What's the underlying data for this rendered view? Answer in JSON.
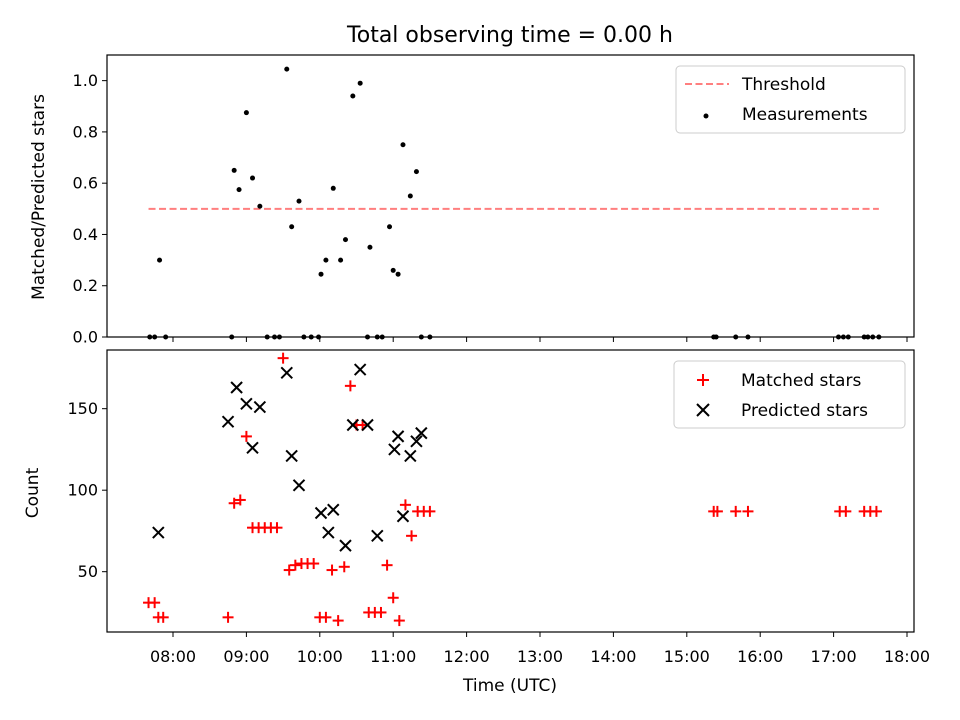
{
  "chart_data": [
    {
      "type": "scatter",
      "title": "Total observing time = 0.00 h",
      "xlabel": "",
      "ylabel": "Matched/Predicted stars",
      "ylim": [
        0,
        1.1
      ],
      "yticks": [
        "0.0",
        "0.2",
        "0.4",
        "0.6",
        "0.8",
        "1.0"
      ],
      "legend_position": "top-right",
      "threshold": {
        "name": "Threshold",
        "y": 0.5,
        "x_start": "07:40",
        "x_end": "17:37",
        "color": "#ff7f7f"
      },
      "series": [
        {
          "name": "Measurements",
          "color": "#000000",
          "marker": "dot",
          "x": [
            "07:41",
            "07:45",
            "07:49",
            "07:54",
            "08:48",
            "08:50",
            "08:54",
            "09:00",
            "09:05",
            "09:11",
            "09:17",
            "09:23",
            "09:27",
            "09:33",
            "09:37",
            "09:43",
            "09:47",
            "09:53",
            "09:59",
            "10:01",
            "10:05",
            "10:11",
            "10:17",
            "10:21",
            "10:27",
            "10:33",
            "10:39",
            "10:41",
            "10:47",
            "10:51",
            "10:57",
            "11:00",
            "11:04",
            "11:08",
            "11:14",
            "11:19",
            "11:23",
            "11:30",
            "15:22",
            "15:24",
            "15:40",
            "15:50",
            "17:04",
            "17:08",
            "17:12",
            "17:25",
            "17:28",
            "17:32",
            "17:37"
          ],
          "y": [
            0,
            0,
            0.3,
            0,
            0,
            0.65,
            0.575,
            0.875,
            0.62,
            0.51,
            0,
            0,
            0,
            1.045,
            0.43,
            0.53,
            0,
            0,
            0,
            0.245,
            0.3,
            0.58,
            0.3,
            0.38,
            0.94,
            0.99,
            0,
            0.35,
            0,
            0,
            0.43,
            0.26,
            0.245,
            0.75,
            0.55,
            0.645,
            0,
            0,
            0,
            0,
            0,
            0,
            0,
            0,
            0,
            0,
            0,
            0,
            0
          ]
        }
      ]
    },
    {
      "type": "scatter",
      "title": "",
      "xlabel": "Time (UTC)",
      "ylabel": "Count",
      "ylim": [
        13,
        186
      ],
      "yticks": [
        "50",
        "100",
        "150"
      ],
      "xticks": [
        "08:00",
        "09:00",
        "10:00",
        "11:00",
        "12:00",
        "13:00",
        "14:00",
        "15:00",
        "16:00",
        "17:00",
        "18:00"
      ],
      "legend_position": "top-right",
      "series": [
        {
          "name": "Matched stars",
          "color": "#ff0000",
          "marker": "plus",
          "x": [
            "07:40",
            "07:45",
            "07:48",
            "07:52",
            "08:45",
            "08:50",
            "08:55",
            "09:00",
            "09:05",
            "09:10",
            "09:15",
            "09:20",
            "09:25",
            "09:30",
            "09:35",
            "09:40",
            "09:45",
            "09:50",
            "09:55",
            "10:00",
            "10:05",
            "10:10",
            "10:15",
            "10:20",
            "10:25",
            "10:30",
            "10:35",
            "10:40",
            "10:45",
            "10:50",
            "10:55",
            "11:00",
            "11:05",
            "11:10",
            "11:15",
            "11:20",
            "11:25",
            "11:30",
            "15:22",
            "15:25",
            "15:40",
            "15:50",
            "17:05",
            "17:10",
            "17:25",
            "17:30",
            "17:35"
          ],
          "y": [
            31,
            31,
            22,
            22,
            22,
            92,
            94,
            133,
            77,
            77,
            77,
            77,
            77,
            181,
            51,
            54,
            55,
            55,
            55,
            22,
            22,
            51,
            20,
            53,
            164,
            140,
            140,
            25,
            25,
            25,
            54,
            34,
            20,
            91,
            72,
            87,
            87,
            87,
            87,
            87,
            87,
            87,
            87,
            87,
            87,
            87,
            87
          ]
        },
        {
          "name": "Predicted stars",
          "color": "#000000",
          "marker": "cross",
          "x": [
            "07:48",
            "08:45",
            "08:52",
            "09:00",
            "09:05",
            "09:11",
            "09:33",
            "09:37",
            "09:43",
            "10:01",
            "10:07",
            "10:11",
            "10:21",
            "10:27",
            "10:33",
            "10:39",
            "10:47",
            "11:01",
            "11:04",
            "11:08",
            "11:14",
            "11:19",
            "11:23"
          ],
          "y": [
            74,
            142,
            163,
            153,
            126,
            151,
            172,
            121,
            103,
            86,
            74,
            88,
            66,
            140,
            174,
            140,
            72,
            125,
            133,
            84,
            121,
            130,
            135
          ]
        }
      ]
    }
  ]
}
